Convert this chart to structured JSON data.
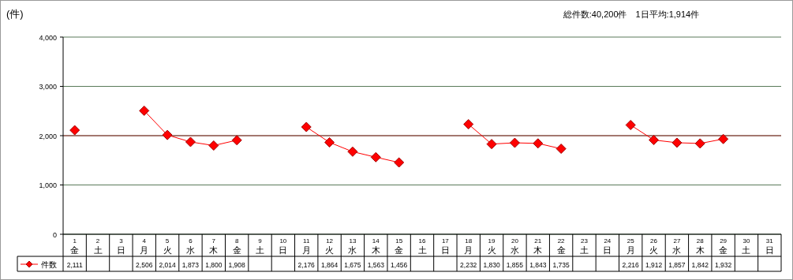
{
  "chart_data": {
    "type": "line",
    "ylabel": "(件)",
    "annotations": [
      "総件数:40,200件　1日平均:1,914件"
    ],
    "categories": [
      "1\n金",
      "2\n土",
      "3\n日",
      "4\n月",
      "5\n火",
      "6\n水",
      "7\n木",
      "8\n金",
      "9\n土",
      "10\n日",
      "11\n月",
      "12\n火",
      "13\n水",
      "14\n木",
      "15\n金",
      "16\n土",
      "17\n日",
      "18\n月",
      "19\n火",
      "20\n水",
      "21\n木",
      "22\n金",
      "23\n土",
      "24\n日",
      "25\n月",
      "26\n火",
      "27\n水",
      "28\n木",
      "29\n金",
      "30\n土",
      "31\n日"
    ],
    "series": [
      {
        "name": "件数",
        "color": "#ff0000",
        "values": [
          2111,
          null,
          null,
          2506,
          2014,
          1873,
          1800,
          1908,
          null,
          null,
          2176,
          1864,
          1675,
          1563,
          1456,
          null,
          null,
          2232,
          1830,
          1855,
          1843,
          1735,
          null,
          null,
          2216,
          1912,
          1857,
          1842,
          1932,
          null,
          null
        ],
        "value_labels": [
          "2,111",
          null,
          null,
          "2,506",
          "2,014",
          "1,873",
          "1,800",
          "1,908",
          null,
          null,
          "2,176",
          "1,864",
          "1,675",
          "1,563",
          "1,456",
          null,
          null,
          "2,232",
          "1,830",
          "1,855",
          "1,843",
          "1,735",
          null,
          null,
          "2,216",
          "1,912",
          "1,857",
          "1,842",
          "1,932",
          null,
          null
        ]
      }
    ],
    "ylim": [
      0,
      4000
    ],
    "yticks": [
      {
        "value": 0,
        "label": "0"
      },
      {
        "value": 1000,
        "label": "1,000"
      },
      {
        "value": 2000,
        "label": "2,000"
      },
      {
        "value": 3000,
        "label": "3,000"
      },
      {
        "value": 4000,
        "label": "4,000"
      }
    ],
    "grid": "y",
    "ref_lines": [
      {
        "axis": "y",
        "value": 2000,
        "color": "#993333"
      }
    ],
    "marker": "diamond",
    "line_style": "solid",
    "legend": "bottom left"
  }
}
